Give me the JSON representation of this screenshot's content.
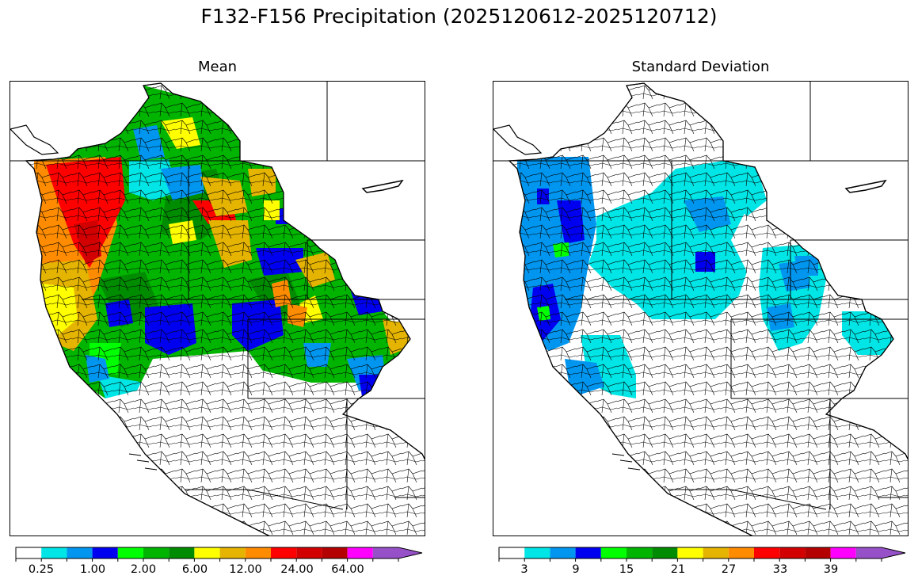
{
  "figure_title": "F132-F156 Precipitation (2025120612-2025120712)",
  "panels": [
    {
      "title": "Mean",
      "colorbar": {
        "colors": [
          "#ffffff",
          "#00e5e5",
          "#0096f0",
          "#0000f0",
          "#00ff00",
          "#00b400",
          "#008c00",
          "#ffff00",
          "#e5b400",
          "#ff8c00",
          "#ff0000",
          "#d20000",
          "#b40000",
          "#ff00ff",
          "#9650c8"
        ],
        "tick_labels": [
          "0.25",
          "1.00",
          "2.00",
          "6.00",
          "12.00",
          "24.00",
          "64.00"
        ],
        "extend": "max"
      }
    },
    {
      "title": "Standard Deviation",
      "colorbar": {
        "colors": [
          "#ffffff",
          "#00e5e5",
          "#0096f0",
          "#0000f0",
          "#00ff00",
          "#00b400",
          "#008c00",
          "#ffff00",
          "#e5b400",
          "#ff8c00",
          "#ff0000",
          "#d20000",
          "#b40000",
          "#ff00ff",
          "#9650c8"
        ],
        "tick_labels": [
          "3",
          "9",
          "15",
          "21",
          "27",
          "33",
          "39"
        ],
        "extend": "max"
      }
    }
  ]
}
